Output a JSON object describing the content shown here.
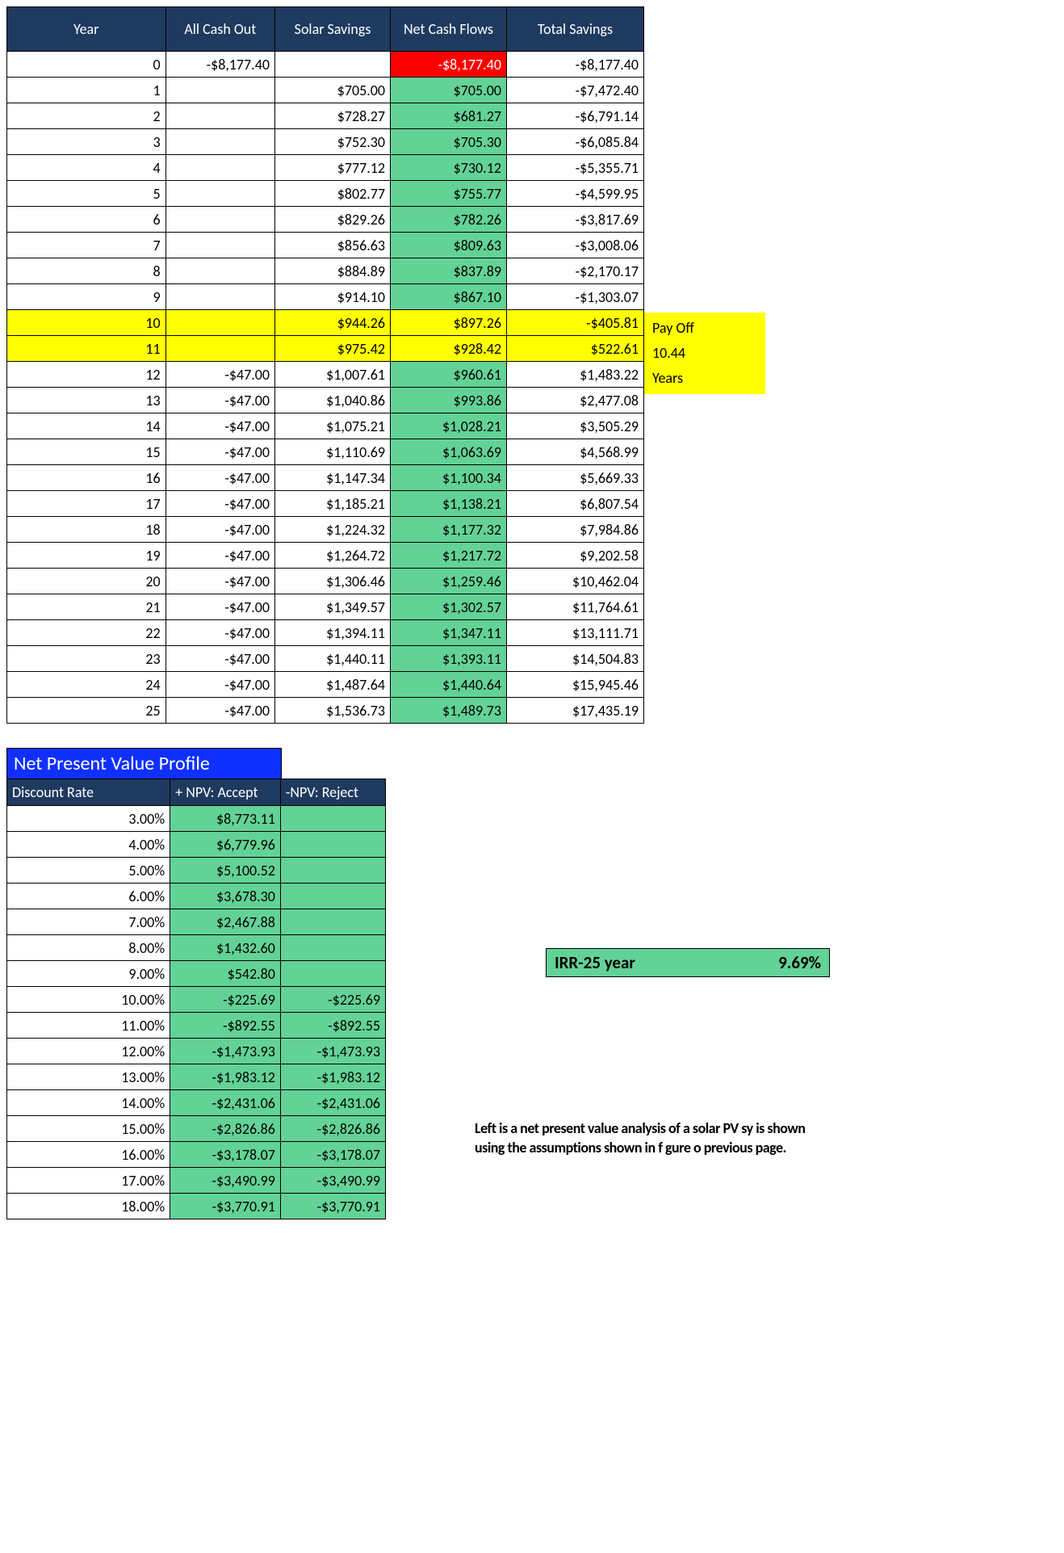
{
  "colors": {
    "header_bg": "#1f3a5f",
    "header_fg": "#ffffff",
    "green": "#63d297",
    "red": "#ff0000",
    "yellow": "#ffff00",
    "blue_title": "#1030ff",
    "border": "#000000",
    "cell_bg": "#ffffff"
  },
  "cashflow_table": {
    "headers": [
      "Year",
      "All Cash Out",
      "Solar Savings",
      "Net Cash Flows",
      "Total Savings"
    ],
    "rows": [
      {
        "year": "0",
        "cash": "-$8,177.40",
        "sav": "",
        "net": "-$8,177.40",
        "tot": "-$8,177.40",
        "net_color": "red"
      },
      {
        "year": "1",
        "cash": "",
        "sav": "$705.00",
        "net": "$705.00",
        "tot": "-$7,472.40",
        "net_color": "green"
      },
      {
        "year": "2",
        "cash": "",
        "sav": "$728.27",
        "net": "$681.27",
        "tot": "-$6,791.14",
        "net_color": "green"
      },
      {
        "year": "3",
        "cash": "",
        "sav": "$752.30",
        "net": "$705.30",
        "tot": "-$6,085.84",
        "net_color": "green"
      },
      {
        "year": "4",
        "cash": "",
        "sav": "$777.12",
        "net": "$730.12",
        "tot": "-$5,355.71",
        "net_color": "green"
      },
      {
        "year": "5",
        "cash": "",
        "sav": "$802.77",
        "net": "$755.77",
        "tot": "-$4,599.95",
        "net_color": "green"
      },
      {
        "year": "6",
        "cash": "",
        "sav": "$829.26",
        "net": "$782.26",
        "tot": "-$3,817.69",
        "net_color": "green"
      },
      {
        "year": "7",
        "cash": "",
        "sav": "$856.63",
        "net": "$809.63",
        "tot": "-$3,008.06",
        "net_color": "green"
      },
      {
        "year": "8",
        "cash": "",
        "sav": "$884.89",
        "net": "$837.89",
        "tot": "-$2,170.17",
        "net_color": "green"
      },
      {
        "year": "9",
        "cash": "",
        "sav": "$914.10",
        "net": "$867.10",
        "tot": "-$1,303.07",
        "net_color": "green"
      },
      {
        "year": "10",
        "cash": "",
        "sav": "$944.26",
        "net": "$897.26",
        "tot": "-$405.81",
        "net_color": "yellow",
        "row_hl": true
      },
      {
        "year": "11",
        "cash": "",
        "sav": "$975.42",
        "net": "$928.42",
        "tot": "$522.61",
        "net_color": "yellow",
        "row_hl": true
      },
      {
        "year": "12",
        "cash": "-$47.00",
        "sav": "$1,007.61",
        "net": "$960.61",
        "tot": "$1,483.22",
        "net_color": "green"
      },
      {
        "year": "13",
        "cash": "-$47.00",
        "sav": "$1,040.86",
        "net": "$993.86",
        "tot": "$2,477.08",
        "net_color": "green"
      },
      {
        "year": "14",
        "cash": "-$47.00",
        "sav": "$1,075.21",
        "net": "$1,028.21",
        "tot": "$3,505.29",
        "net_color": "green"
      },
      {
        "year": "15",
        "cash": "-$47.00",
        "sav": "$1,110.69",
        "net": "$1,063.69",
        "tot": "$4,568.99",
        "net_color": "green"
      },
      {
        "year": "16",
        "cash": "-$47.00",
        "sav": "$1,147.34",
        "net": "$1,100.34",
        "tot": "$5,669.33",
        "net_color": "green"
      },
      {
        "year": "17",
        "cash": "-$47.00",
        "sav": "$1,185.21",
        "net": "$1,138.21",
        "tot": "$6,807.54",
        "net_color": "green"
      },
      {
        "year": "18",
        "cash": "-$47.00",
        "sav": "$1,224.32",
        "net": "$1,177.32",
        "tot": "$7,984.86",
        "net_color": "green"
      },
      {
        "year": "19",
        "cash": "-$47.00",
        "sav": "$1,264.72",
        "net": "$1,217.72",
        "tot": "$9,202.58",
        "net_color": "green"
      },
      {
        "year": "20",
        "cash": "-$47.00",
        "sav": "$1,306.46",
        "net": "$1,259.46",
        "tot": "$10,462.04",
        "net_color": "green"
      },
      {
        "year": "21",
        "cash": "-$47.00",
        "sav": "$1,349.57",
        "net": "$1,302.57",
        "tot": "$11,764.61",
        "net_color": "green"
      },
      {
        "year": "22",
        "cash": "-$47.00",
        "sav": "$1,394.11",
        "net": "$1,347.11",
        "tot": "$13,111.71",
        "net_color": "green"
      },
      {
        "year": "23",
        "cash": "-$47.00",
        "sav": "$1,440.11",
        "net": "$1,393.11",
        "tot": "$14,504.83",
        "net_color": "green"
      },
      {
        "year": "24",
        "cash": "-$47.00",
        "sav": "$1,487.64",
        "net": "$1,440.64",
        "tot": "$15,945.46",
        "net_color": "green"
      },
      {
        "year": "25",
        "cash": "-$47.00",
        "sav": "$1,536.73",
        "net": "$1,489.73",
        "tot": "$17,435.19",
        "net_color": "green"
      }
    ]
  },
  "payoff": {
    "label": "Pay Off",
    "value": "10.44",
    "unit": "Years"
  },
  "npv": {
    "title": "Net Present Value Profile",
    "headers": [
      "Discount Rate",
      "+ NPV: Accept",
      "-NPV: Reject"
    ],
    "rows": [
      {
        "rate": "3.00%",
        "accept": "$8,773.11",
        "reject": ""
      },
      {
        "rate": "4.00%",
        "accept": "$6,779.96",
        "reject": ""
      },
      {
        "rate": "5.00%",
        "accept": "$5,100.52",
        "reject": ""
      },
      {
        "rate": "6.00%",
        "accept": "$3,678.30",
        "reject": ""
      },
      {
        "rate": "7.00%",
        "accept": "$2,467.88",
        "reject": ""
      },
      {
        "rate": "8.00%",
        "accept": "$1,432.60",
        "reject": ""
      },
      {
        "rate": "9.00%",
        "accept": "$542.80",
        "reject": ""
      },
      {
        "rate": "10.00%",
        "accept": "-$225.69",
        "reject": "-$225.69"
      },
      {
        "rate": "11.00%",
        "accept": "-$892.55",
        "reject": "-$892.55"
      },
      {
        "rate": "12.00%",
        "accept": "-$1,473.93",
        "reject": "-$1,473.93"
      },
      {
        "rate": "13.00%",
        "accept": "-$1,983.12",
        "reject": "-$1,983.12"
      },
      {
        "rate": "14.00%",
        "accept": "-$2,431.06",
        "reject": "-$2,431.06"
      },
      {
        "rate": "15.00%",
        "accept": "-$2,826.86",
        "reject": "-$2,826.86"
      },
      {
        "rate": "16.00%",
        "accept": "-$3,178.07",
        "reject": "-$3,178.07"
      },
      {
        "rate": "17.00%",
        "accept": "-$3,490.99",
        "reject": "-$3,490.99"
      },
      {
        "rate": "18.00%",
        "accept": "-$3,770.91",
        "reject": "-$3,770.91"
      }
    ]
  },
  "irr": {
    "label": "IRR-25 year",
    "value": "9.69%"
  },
  "caption": "Left is a net present value analysis of a solar PV sy is shown using the assumptions shown in f gure o previous page."
}
